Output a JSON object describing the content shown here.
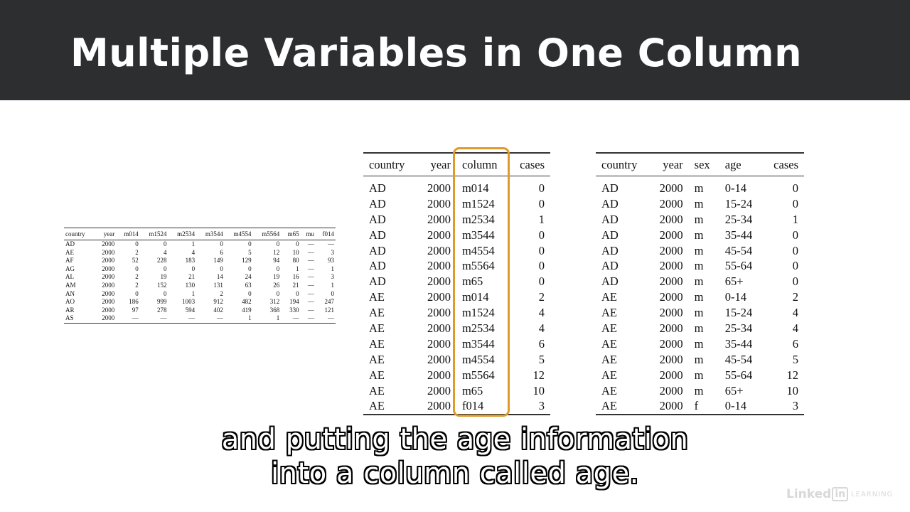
{
  "slide": {
    "title": "Multiple Variables in One Column",
    "caption_lines": [
      "and putting the age information",
      "into a column called age."
    ],
    "logo": {
      "linked": "Linked",
      "in": "in",
      "learning": "LEARNING"
    }
  },
  "colors": {
    "header_bg": "#2d2e30",
    "highlight": "#e09a2b"
  },
  "wide_table": {
    "headers": [
      "country",
      "year",
      "m014",
      "m1524",
      "m2534",
      "m3544",
      "m4554",
      "m5564",
      "m65",
      "mu",
      "f014"
    ],
    "rows": [
      [
        "AD",
        "2000",
        "0",
        "0",
        "1",
        "0",
        "0",
        "0",
        "0",
        "—",
        "—"
      ],
      [
        "AE",
        "2000",
        "2",
        "4",
        "4",
        "6",
        "5",
        "12",
        "10",
        "—",
        "3"
      ],
      [
        "AF",
        "2000",
        "52",
        "228",
        "183",
        "149",
        "129",
        "94",
        "80",
        "—",
        "93"
      ],
      [
        "AG",
        "2000",
        "0",
        "0",
        "0",
        "0",
        "0",
        "0",
        "1",
        "—",
        "1"
      ],
      [
        "AL",
        "2000",
        "2",
        "19",
        "21",
        "14",
        "24",
        "19",
        "16",
        "—",
        "3"
      ],
      [
        "AM",
        "2000",
        "2",
        "152",
        "130",
        "131",
        "63",
        "26",
        "21",
        "—",
        "1"
      ],
      [
        "AN",
        "2000",
        "0",
        "0",
        "1",
        "2",
        "0",
        "0",
        "0",
        "—",
        "0"
      ],
      [
        "AO",
        "2000",
        "186",
        "999",
        "1003",
        "912",
        "482",
        "312",
        "194",
        "—",
        "247"
      ],
      [
        "AR",
        "2000",
        "97",
        "278",
        "594",
        "402",
        "419",
        "368",
        "330",
        "—",
        "121"
      ],
      [
        "AS",
        "2000",
        "—",
        "—",
        "—",
        "—",
        "1",
        "1",
        "—",
        "—",
        "—"
      ]
    ]
  },
  "molten_table": {
    "headers": [
      "country",
      "year",
      "column",
      "cases"
    ],
    "rows": [
      [
        "AD",
        "2000",
        "m014",
        "0"
      ],
      [
        "AD",
        "2000",
        "m1524",
        "0"
      ],
      [
        "AD",
        "2000",
        "m2534",
        "1"
      ],
      [
        "AD",
        "2000",
        "m3544",
        "0"
      ],
      [
        "AD",
        "2000",
        "m4554",
        "0"
      ],
      [
        "AD",
        "2000",
        "m5564",
        "0"
      ],
      [
        "AD",
        "2000",
        "m65",
        "0"
      ],
      [
        "AE",
        "2000",
        "m014",
        "2"
      ],
      [
        "AE",
        "2000",
        "m1524",
        "4"
      ],
      [
        "AE",
        "2000",
        "m2534",
        "4"
      ],
      [
        "AE",
        "2000",
        "m3544",
        "6"
      ],
      [
        "AE",
        "2000",
        "m4554",
        "5"
      ],
      [
        "AE",
        "2000",
        "m5564",
        "12"
      ],
      [
        "AE",
        "2000",
        "m65",
        "10"
      ],
      [
        "AE",
        "2000",
        "f014",
        "3"
      ]
    ]
  },
  "tidy_table": {
    "headers": [
      "country",
      "year",
      "sex",
      "age",
      "cases"
    ],
    "rows": [
      [
        "AD",
        "2000",
        "m",
        "0-14",
        "0"
      ],
      [
        "AD",
        "2000",
        "m",
        "15-24",
        "0"
      ],
      [
        "AD",
        "2000",
        "m",
        "25-34",
        "1"
      ],
      [
        "AD",
        "2000",
        "m",
        "35-44",
        "0"
      ],
      [
        "AD",
        "2000",
        "m",
        "45-54",
        "0"
      ],
      [
        "AD",
        "2000",
        "m",
        "55-64",
        "0"
      ],
      [
        "AD",
        "2000",
        "m",
        "65+",
        "0"
      ],
      [
        "AE",
        "2000",
        "m",
        "0-14",
        "2"
      ],
      [
        "AE",
        "2000",
        "m",
        "15-24",
        "4"
      ],
      [
        "AE",
        "2000",
        "m",
        "25-34",
        "4"
      ],
      [
        "AE",
        "2000",
        "m",
        "35-44",
        "6"
      ],
      [
        "AE",
        "2000",
        "m",
        "45-54",
        "5"
      ],
      [
        "AE",
        "2000",
        "m",
        "55-64",
        "12"
      ],
      [
        "AE",
        "2000",
        "m",
        "65+",
        "10"
      ],
      [
        "AE",
        "2000",
        "f",
        "0-14",
        "3"
      ]
    ]
  }
}
